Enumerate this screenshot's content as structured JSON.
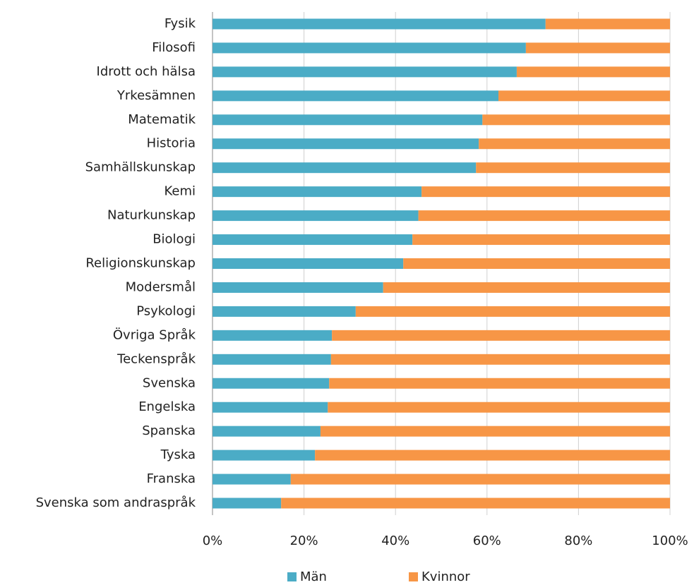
{
  "chart_data": {
    "type": "stacked-bar-horizontal",
    "categories": [
      "Fysik",
      "Filosofi",
      "Idrott och hälsa",
      "Yrkesämnen",
      "Matematik",
      "Historia",
      "Samhällskunskap",
      "Kemi",
      "Naturkunskap",
      "Biologi",
      "Religionskunskap",
      "Modersmål",
      "Psykologi",
      "Övriga Språk",
      "Teckenspråk",
      "Svenska",
      "Engelska",
      "Spanska",
      "Tyska",
      "Franska",
      "Svenska som andraspråk"
    ],
    "series": [
      {
        "name": "Män",
        "color": "#4bacc6",
        "values": [
          72.8,
          68.5,
          66.5,
          62.5,
          59,
          58.2,
          57.6,
          45.7,
          45,
          43.7,
          41.7,
          37.3,
          31.3,
          26.1,
          25.9,
          25.5,
          25.2,
          23.6,
          22.4,
          17.1,
          15
        ]
      },
      {
        "name": "Kvinnor",
        "color": "#f79646",
        "values": [
          27.2,
          31.5,
          33.5,
          37.5,
          41,
          41.8,
          42.4,
          54.3,
          55,
          56.3,
          58.3,
          62.7,
          68.7,
          73.9,
          74.1,
          74.5,
          74.8,
          76.4,
          77.6,
          82.9,
          85
        ]
      }
    ],
    "xlim": [
      0,
      100
    ],
    "xticks": [
      {
        "value": 0,
        "label": "0%"
      },
      {
        "value": 20,
        "label": "20%"
      },
      {
        "value": 40,
        "label": "40%"
      },
      {
        "value": 60,
        "label": "60%"
      },
      {
        "value": 80,
        "label": "80%"
      },
      {
        "value": 100,
        "label": "100%"
      }
    ],
    "grid": true,
    "legend": "bottom"
  }
}
